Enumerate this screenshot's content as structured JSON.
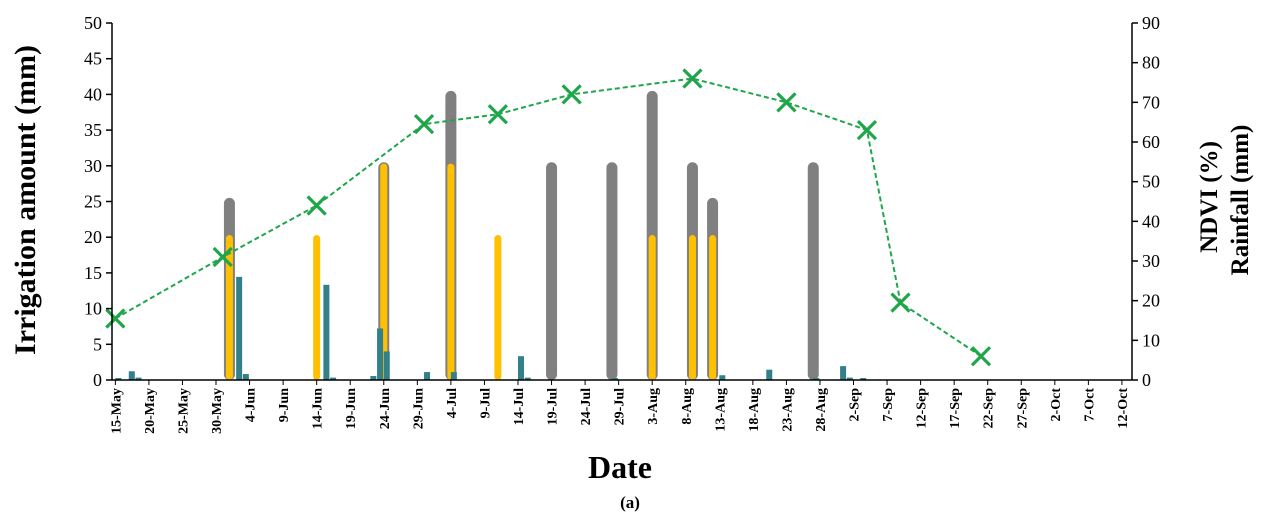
{
  "chart_data": {
    "type": "bar",
    "title": "",
    "caption": "(a)",
    "xlabel": "Date",
    "ylabel_left": "Irrigation amount (mm)",
    "ylabel_right_inner": "NDVI (%)",
    "ylabel_right_outer": "Rainfall (mm)",
    "ylim_left": [
      0,
      50
    ],
    "ylim_right": [
      0,
      90
    ],
    "yticks_left": [
      "0",
      "5",
      "10",
      "15",
      "20",
      "25",
      "30",
      "35",
      "40",
      "45",
      "50"
    ],
    "yticks_right": [
      "0",
      "10",
      "20",
      "30",
      "40",
      "50",
      "60",
      "70",
      "80",
      "90"
    ],
    "x_tick_labels": [
      "15-May",
      "20-May",
      "25-May",
      "30-May",
      "4-Jun",
      "9-Jun",
      "14-Jun",
      "19-Jun",
      "24-Jun",
      "29-Jun",
      "4-Jul",
      "9-Jul",
      "14-Jul",
      "19-Jul",
      "24-Jul",
      "29-Jul",
      "3-Aug",
      "8-Aug",
      "13-Aug",
      "18-Aug",
      "23-Aug",
      "28-Aug",
      "2-Sep",
      "7-Sep",
      "12-Sep",
      "17-Sep",
      "22-Sep",
      "27-Sep",
      "2-Oct",
      "7-Oct",
      "12-Oct"
    ],
    "grid": false,
    "legend": "none",
    "colors": {
      "irrigation_gray": "#808080",
      "irrigation_yellow": "#FFC000",
      "rainfall": "#31808A",
      "ndvi": "#1FA64A"
    },
    "series": [
      {
        "kind": "bar",
        "axis": "left",
        "color": "#808080",
        "points": [
          {
            "day": 17,
            "value": 25.5
          },
          {
            "day": 40,
            "value": 30.5
          },
          {
            "day": 50,
            "value": 40.5
          },
          {
            "day": 89,
            "value": 25.5
          },
          {
            "day": 65,
            "value": 30.5
          },
          {
            "day": 74,
            "value": 30.5
          },
          {
            "day": 80,
            "value": 40.5
          },
          {
            "day": 86,
            "value": 30.5
          },
          {
            "day": 104,
            "value": 30.5
          }
        ]
      },
      {
        "kind": "bar",
        "axis": "left",
        "color": "#FFC000",
        "points": [
          {
            "day": 17,
            "value": 20.3
          },
          {
            "day": 30,
            "value": 20.3
          },
          {
            "day": 40,
            "value": 30.3
          },
          {
            "day": 50,
            "value": 30.3
          },
          {
            "day": 57,
            "value": 20.3
          },
          {
            "day": 80,
            "value": 20.3
          },
          {
            "day": 86,
            "value": 20.3
          },
          {
            "day": 89,
            "value": 20.3
          }
        ]
      },
      {
        "kind": "bar",
        "axis": "right",
        "color": "#31808A",
        "points": [
          {
            "day": 0,
            "value": 0.5
          },
          {
            "day": 2,
            "value": 2.2
          },
          {
            "day": 3,
            "value": 0.6
          },
          {
            "day": 18,
            "value": 26.0
          },
          {
            "day": 19,
            "value": 1.5
          },
          {
            "day": 31,
            "value": 24.0
          },
          {
            "day": 32,
            "value": 0.6
          },
          {
            "day": 38,
            "value": 1.0
          },
          {
            "day": 39,
            "value": 13.0
          },
          {
            "day": 40,
            "value": 7.2
          },
          {
            "day": 46,
            "value": 2.0
          },
          {
            "day": 50,
            "value": 2.0
          },
          {
            "day": 60,
            "value": 6.0
          },
          {
            "day": 61,
            "value": 0.6
          },
          {
            "day": 74,
            "value": 0.5
          },
          {
            "day": 90,
            "value": 1.2
          },
          {
            "day": 97,
            "value": 2.6
          },
          {
            "day": 104,
            "value": 0.5
          },
          {
            "day": 108,
            "value": 3.5
          },
          {
            "day": 109,
            "value": 0.6
          },
          {
            "day": 111,
            "value": 0.5
          }
        ]
      },
      {
        "kind": "line",
        "axis": "right",
        "color": "#1FA64A",
        "points": [
          {
            "day": 0,
            "value": 15.5
          },
          {
            "day": 16,
            "value": 31.0
          },
          {
            "day": 30,
            "value": 44.0
          },
          {
            "day": 46,
            "value": 64.5
          },
          {
            "day": 57,
            "value": 67.0
          },
          {
            "day": 68,
            "value": 72.0
          },
          {
            "day": 86,
            "value": 76.0
          },
          {
            "day": 100,
            "value": 70.0
          },
          {
            "day": 112,
            "value": 63.0
          },
          {
            "day": 117,
            "value": 19.5
          },
          {
            "day": 129,
            "value": 6.0
          }
        ]
      }
    ]
  }
}
